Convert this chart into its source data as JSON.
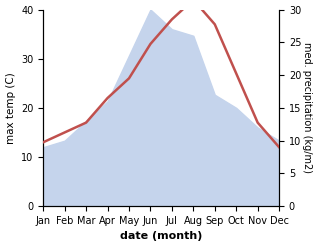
{
  "months": [
    "Jan",
    "Feb",
    "Mar",
    "Apr",
    "May",
    "Jun",
    "Jul",
    "Aug",
    "Sep",
    "Oct",
    "Nov",
    "Dec"
  ],
  "month_indices": [
    0,
    1,
    2,
    3,
    4,
    5,
    6,
    7,
    8,
    9,
    10,
    11
  ],
  "temperature": [
    13,
    15,
    17,
    22,
    26,
    33,
    38,
    42,
    37,
    27,
    17,
    12
  ],
  "precipitation": [
    9,
    10,
    13,
    16,
    23,
    30,
    27,
    26,
    17,
    15,
    12,
    10
  ],
  "temp_color": "#c0504d",
  "precip_color": "#c5d4ec",
  "temp_ylim": [
    0,
    40
  ],
  "temp_yticks": [
    0,
    10,
    20,
    30,
    40
  ],
  "precip_ylim": [
    0,
    30
  ],
  "precip_yticks": [
    0,
    5,
    10,
    15,
    20,
    25,
    30
  ],
  "ylabel_left": "max temp (C)",
  "ylabel_right": "med. precipitation (kg/m2)",
  "xlabel": "date (month)",
  "background_color": "#ffffff",
  "temp_linewidth": 1.8,
  "fig_width": 3.18,
  "fig_height": 2.47,
  "dpi": 100
}
